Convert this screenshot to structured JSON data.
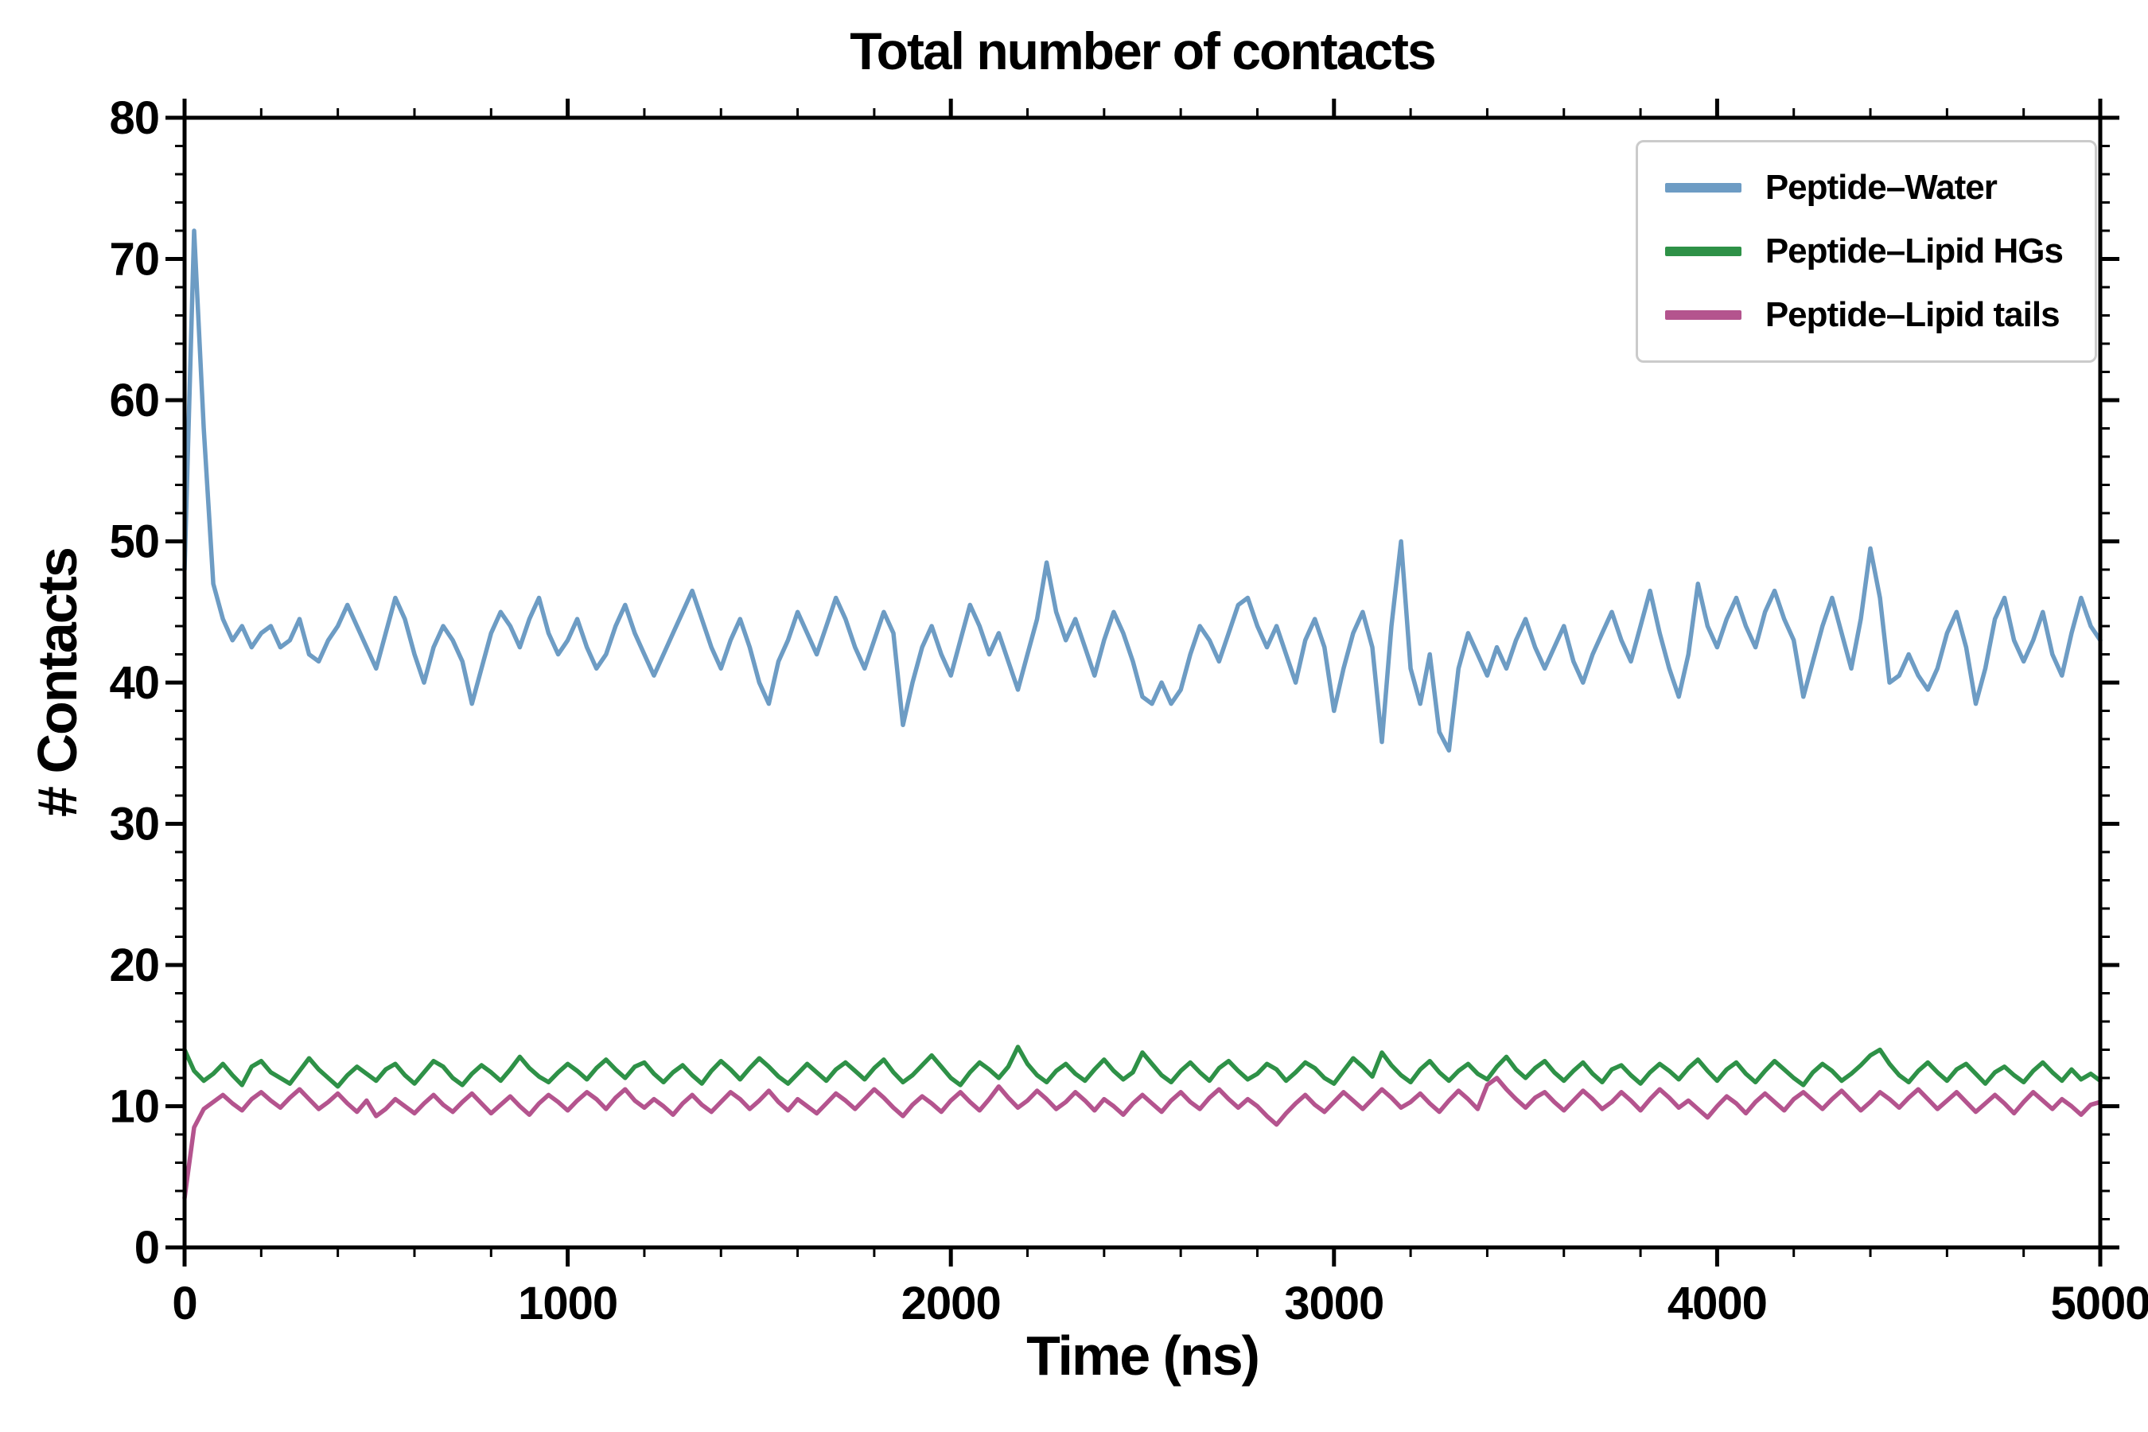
{
  "chart_data": {
    "type": "line",
    "title": "Total number of contacts",
    "xlabel": "Time (ns)",
    "ylabel": "# Contacts",
    "xlim": [
      0,
      5000
    ],
    "ylim": [
      0,
      80
    ],
    "xticks": [
      0,
      1000,
      2000,
      3000,
      4000,
      5000
    ],
    "yticks": [
      0,
      10,
      20,
      30,
      40,
      50,
      60,
      70,
      80
    ],
    "x_minor_step": 200,
    "y_minor_step": 2,
    "x_step": 25,
    "grid": false,
    "legend_position": "upper right",
    "axis_color": "#000000",
    "series": [
      {
        "name": "Peptide–Water",
        "color": "#6d9cc4",
        "values": [
          48,
          72,
          58,
          47,
          44.5,
          43,
          44,
          42.5,
          43.5,
          44,
          42.5,
          43,
          44.5,
          42,
          41.5,
          43,
          44,
          45.5,
          44,
          42.5,
          41,
          43.5,
          46,
          44.5,
          42,
          40,
          42.5,
          44,
          43,
          41.5,
          38.5,
          41,
          43.5,
          45,
          44,
          42.5,
          44.5,
          46,
          43.5,
          42,
          43,
          44.5,
          42.5,
          41,
          42,
          44,
          45.5,
          43.5,
          42,
          40.5,
          42,
          43.5,
          45,
          46.5,
          44.5,
          42.5,
          41,
          43,
          44.5,
          42.5,
          40,
          38.5,
          41.5,
          43,
          45,
          43.5,
          42,
          44,
          46,
          44.5,
          42.5,
          41,
          43,
          45,
          43.5,
          37,
          40,
          42.5,
          44,
          42,
          40.5,
          43,
          45.5,
          44,
          42,
          43.5,
          41.5,
          39.5,
          42,
          44.5,
          48.5,
          45,
          43,
          44.5,
          42.5,
          40.5,
          43,
          45,
          43.5,
          41.5,
          39,
          38.5,
          40,
          38.5,
          39.5,
          42,
          44,
          43,
          41.5,
          43.5,
          45.5,
          46,
          44,
          42.5,
          44,
          42,
          40,
          43,
          44.5,
          42.5,
          38,
          41,
          43.5,
          45,
          42.5,
          35.8,
          44,
          50,
          41,
          38.5,
          42,
          36.5,
          35.2,
          41,
          43.5,
          42,
          40.5,
          42.5,
          41,
          43,
          44.5,
          42.5,
          41,
          42.5,
          44,
          41.5,
          40,
          42,
          43.5,
          45,
          43,
          41.5,
          44,
          46.5,
          43.5,
          41,
          39,
          42,
          47,
          44,
          42.5,
          44.5,
          46,
          44,
          42.5,
          45,
          46.5,
          44.5,
          43,
          39,
          41.5,
          44,
          46,
          43.5,
          41,
          44.5,
          49.5,
          46,
          40,
          40.5,
          42,
          40.5,
          39.5,
          41,
          43.5,
          45,
          42.5,
          38.5,
          41,
          44.5,
          46,
          43,
          41.5,
          43,
          45,
          42,
          40.5,
          43.5,
          46,
          44,
          43
        ]
      },
      {
        "name": "Peptide–Lipid HGs",
        "color": "#2e9147",
        "values": [
          14,
          12.5,
          11.8,
          12.3,
          13,
          12.2,
          11.5,
          12.8,
          13.2,
          12.4,
          12,
          11.6,
          12.5,
          13.4,
          12.6,
          12,
          11.4,
          12.2,
          12.8,
          12.3,
          11.8,
          12.6,
          13,
          12.2,
          11.6,
          12.4,
          13.2,
          12.8,
          12,
          11.5,
          12.3,
          12.9,
          12.4,
          11.8,
          12.6,
          13.5,
          12.7,
          12.1,
          11.7,
          12.4,
          13,
          12.5,
          11.9,
          12.7,
          13.3,
          12.6,
          12,
          12.8,
          13.1,
          12.3,
          11.7,
          12.4,
          12.9,
          12.2,
          11.6,
          12.5,
          13.2,
          12.6,
          11.9,
          12.7,
          13.4,
          12.8,
          12.1,
          11.6,
          12.3,
          13,
          12.4,
          11.8,
          12.6,
          13.1,
          12.5,
          11.9,
          12.7,
          13.3,
          12.4,
          11.7,
          12.2,
          12.9,
          13.6,
          12.8,
          12,
          11.5,
          12.4,
          13.1,
          12.6,
          12,
          12.8,
          14.2,
          13,
          12.2,
          11.7,
          12.5,
          13,
          12.3,
          11.8,
          12.6,
          13.3,
          12.5,
          11.9,
          12.4,
          13.8,
          13,
          12.2,
          11.7,
          12.5,
          13.1,
          12.4,
          11.8,
          12.7,
          13.2,
          12.5,
          11.9,
          12.3,
          13,
          12.6,
          11.8,
          12.4,
          13.1,
          12.7,
          12,
          11.6,
          12.5,
          13.4,
          12.8,
          12.1,
          13.8,
          12.9,
          12.2,
          11.7,
          12.6,
          13.2,
          12.4,
          11.8,
          12.5,
          13,
          12.3,
          11.9,
          12.8,
          13.5,
          12.6,
          12,
          12.7,
          13.2,
          12.4,
          11.8,
          12.5,
          13.1,
          12.3,
          11.7,
          12.6,
          12.9,
          12.2,
          11.6,
          12.4,
          13,
          12.5,
          11.9,
          12.7,
          13.3,
          12.5,
          11.8,
          12.6,
          13.1,
          12.3,
          11.7,
          12.5,
          13.2,
          12.6,
          12,
          11.5,
          12.4,
          13,
          12.5,
          11.8,
          12.3,
          12.9,
          13.6,
          14,
          13,
          12.2,
          11.7,
          12.5,
          13.1,
          12.4,
          11.8,
          12.6,
          13,
          12.3,
          11.6,
          12.4,
          12.8,
          12.2,
          11.7,
          12.5,
          13.1,
          12.4,
          11.8,
          12.6,
          11.9,
          12.3,
          11.8
        ]
      },
      {
        "name": "Peptide–Lipid tails",
        "color": "#b4548e",
        "values": [
          3.5,
          8.5,
          9.8,
          10.3,
          10.8,
          10.2,
          9.7,
          10.5,
          11,
          10.4,
          9.9,
          10.6,
          11.2,
          10.5,
          9.8,
          10.3,
          10.9,
          10.2,
          9.6,
          10.4,
          9.3,
          9.8,
          10.5,
          10,
          9.5,
          10.2,
          10.8,
          10.1,
          9.6,
          10.3,
          10.9,
          10.2,
          9.5,
          10.1,
          10.7,
          10,
          9.4,
          10.2,
          10.8,
          10.3,
          9.7,
          10.4,
          11,
          10.5,
          9.8,
          10.6,
          11.2,
          10.4,
          9.9,
          10.5,
          10,
          9.4,
          10.2,
          10.8,
          10.1,
          9.6,
          10.3,
          11,
          10.5,
          9.8,
          10.4,
          11.1,
          10.3,
          9.7,
          10.5,
          10,
          9.5,
          10.2,
          10.9,
          10.4,
          9.8,
          10.5,
          11.2,
          10.6,
          9.9,
          9.3,
          10.1,
          10.7,
          10.2,
          9.6,
          10.4,
          11,
          10.3,
          9.7,
          10.5,
          11.4,
          10.6,
          9.9,
          10.4,
          11.1,
          10.5,
          9.8,
          10.3,
          11,
          10.4,
          9.7,
          10.5,
          10,
          9.4,
          10.2,
          10.8,
          10.2,
          9.6,
          10.4,
          11,
          10.3,
          9.8,
          10.6,
          11.2,
          10.5,
          9.9,
          10.5,
          10,
          9.3,
          8.7,
          9.5,
          10.2,
          10.8,
          10.1,
          9.6,
          10.3,
          11,
          10.4,
          9.8,
          10.5,
          11.2,
          10.6,
          9.9,
          10.3,
          10.9,
          10.2,
          9.6,
          10.4,
          11.1,
          10.5,
          9.8,
          11.5,
          12,
          11.2,
          10.5,
          9.9,
          10.6,
          11,
          10.3,
          9.7,
          10.4,
          11.1,
          10.5,
          9.8,
          10.3,
          11,
          10.4,
          9.7,
          10.5,
          11.2,
          10.6,
          9.9,
          10.4,
          9.8,
          9.2,
          10,
          10.7,
          10.2,
          9.5,
          10.3,
          10.9,
          10.3,
          9.7,
          10.5,
          11,
          10.4,
          9.8,
          10.5,
          11.1,
          10.4,
          9.7,
          10.3,
          11,
          10.5,
          9.9,
          10.6,
          11.2,
          10.5,
          9.8,
          10.4,
          11,
          10.3,
          9.6,
          10.2,
          10.8,
          10.2,
          9.5,
          10.3,
          11,
          10.4,
          9.8,
          10.5,
          10,
          9.4,
          10.1,
          10.3
        ]
      }
    ]
  }
}
